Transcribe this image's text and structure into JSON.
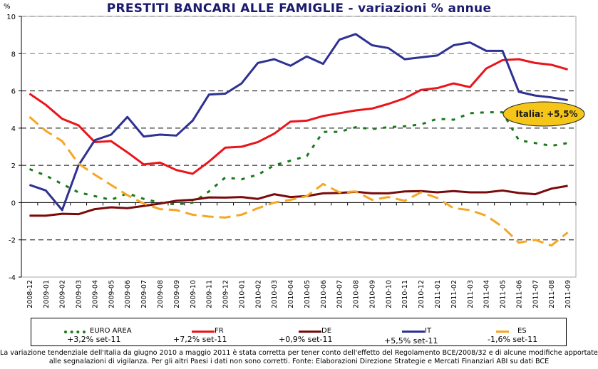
{
  "chart_data": {
    "type": "line",
    "title": "PRESTITI BANCARI ALLE FAMIGLIE - variazioni % annue",
    "ylabel": "%",
    "ylim": [
      -4,
      10
    ],
    "yticks": [
      "-4",
      "-2",
      "0",
      "2",
      "4",
      "6",
      "8",
      "10"
    ],
    "grid": "horizontal dashed",
    "categories": [
      "2008-12",
      "2009-01",
      "2009-02",
      "2009-03",
      "2009-04",
      "2009-05",
      "2009-06",
      "2009-07",
      "2009-08",
      "2009-09",
      "2009-10",
      "2009-11",
      "2009-12",
      "2010-01",
      "2010-02",
      "2010-03",
      "2010-04",
      "2010-05",
      "2010-06",
      "2010-07",
      "2010-08",
      "2010-09",
      "2010-10",
      "2010-11",
      "2010-12",
      "2011-01",
      "2011-02",
      "2011-03",
      "2011-04",
      "2011-05",
      "2011-06",
      "2011-07",
      "2011-08",
      "2011-09"
    ],
    "series": [
      {
        "name": "EURO AREA",
        "note": "+3,2% set-11",
        "color": "#1a7a1a",
        "style": "dotted",
        "values": [
          1.8,
          1.45,
          1.0,
          0.55,
          0.35,
          0.15,
          0.5,
          0.2,
          0.0,
          -0.1,
          0.0,
          0.6,
          1.35,
          1.25,
          1.5,
          2.0,
          2.25,
          2.5,
          3.8,
          3.8,
          4.05,
          3.95,
          4.05,
          4.1,
          4.2,
          4.5,
          4.45,
          4.8,
          4.85,
          4.85,
          3.35,
          3.2,
          3.05,
          3.2
        ]
      },
      {
        "name": "FR",
        "note": "+7,2% set-11",
        "color": "#e8151b",
        "style": "solid",
        "values": [
          5.85,
          5.25,
          4.5,
          4.15,
          3.25,
          3.3,
          2.7,
          2.05,
          2.15,
          1.75,
          1.55,
          2.2,
          2.95,
          3.0,
          3.25,
          3.7,
          4.35,
          4.4,
          4.65,
          4.8,
          4.95,
          5.05,
          5.3,
          5.6,
          6.05,
          6.15,
          6.4,
          6.2,
          7.2,
          7.65,
          7.7,
          7.5,
          7.4,
          7.15
        ]
      },
      {
        "name": "DE",
        "note": "+0,9% set-11",
        "color": "#7a0a0a",
        "style": "solid",
        "values": [
          -0.7,
          -0.7,
          -0.6,
          -0.62,
          -0.35,
          -0.25,
          -0.3,
          -0.18,
          -0.05,
          0.1,
          0.15,
          0.28,
          0.27,
          0.3,
          0.2,
          0.45,
          0.3,
          0.35,
          0.5,
          0.52,
          0.58,
          0.5,
          0.5,
          0.6,
          0.62,
          0.55,
          0.62,
          0.55,
          0.55,
          0.65,
          0.52,
          0.45,
          0.75,
          0.9
        ]
      },
      {
        "name": "IT",
        "note": "+5,5% set-11",
        "color": "#2e3192",
        "style": "solid",
        "values": [
          0.95,
          0.65,
          -0.4,
          2.0,
          3.35,
          3.65,
          4.6,
          3.55,
          3.65,
          3.6,
          4.4,
          5.8,
          5.85,
          6.4,
          7.5,
          7.7,
          7.35,
          7.85,
          7.45,
          8.75,
          9.05,
          8.45,
          8.3,
          7.7,
          7.8,
          7.9,
          8.45,
          8.6,
          8.15,
          8.15,
          5.95,
          5.75,
          5.65,
          5.5
        ]
      },
      {
        "name": "ES",
        "note": "-1,6% set-11",
        "color": "#f5a623",
        "style": "dashed",
        "values": [
          4.6,
          3.85,
          3.3,
          2.1,
          1.5,
          0.95,
          0.4,
          -0.05,
          -0.35,
          -0.4,
          -0.65,
          -0.75,
          -0.8,
          -0.65,
          -0.3,
          0.0,
          0.15,
          0.35,
          1.0,
          0.55,
          0.6,
          0.15,
          0.3,
          0.1,
          0.55,
          0.25,
          -0.3,
          -0.4,
          -0.7,
          -1.3,
          -2.15,
          -2.0,
          -2.3,
          -1.6
        ]
      }
    ],
    "annotation": {
      "text": "Italia: +5,5%",
      "color": "#f5c518"
    },
    "legend_position": "bottom"
  },
  "footnote": {
    "line1": "La variazione tendenziale dell'Italia da giugno 2010 a maggio 2011 è stata corretta per tener conto dell'effetto del Regolamento BCE/2008/32 e di alcune modifiche apportate",
    "line2": "alle segnalazioni di vigilanza. Per gli altri Paesi i dati non sono corretti. Fonte: Elaborazioni Direzione Strategie e Mercati Finanziari ABI su dati BCE"
  }
}
